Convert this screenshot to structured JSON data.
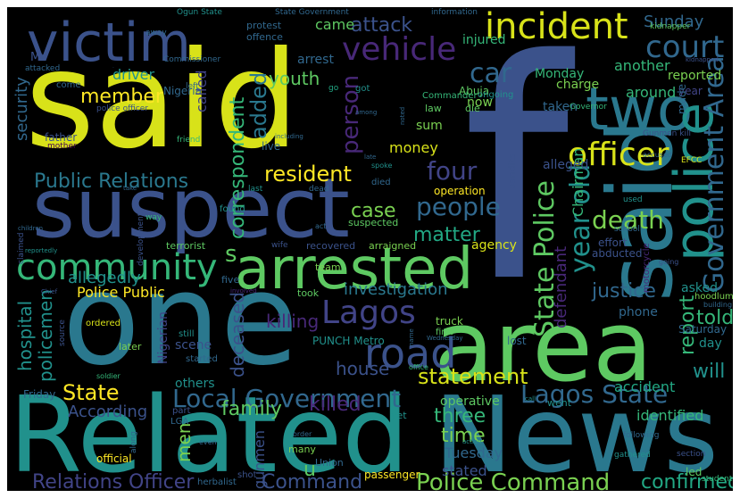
{
  "background_color": "#000000",
  "palette": [
    "#d8e219",
    "#2a788e",
    "#3b528b",
    "#21918c",
    "#5ec962",
    "#7ad151",
    "#fde725",
    "#482878",
    "#440154",
    "#31688e",
    "#35b779",
    "#414487",
    "#22a884"
  ],
  "words": [
    {
      "text": "said",
      "color": "#d8e219"
    },
    {
      "text": "f",
      "color": "#3b528b"
    },
    {
      "text": "said",
      "color": "#2a788e"
    },
    {
      "text": "suspect",
      "color": "#3b528b"
    },
    {
      "text": "one",
      "color": "#2a788e"
    },
    {
      "text": "Related",
      "color": "#21918c"
    },
    {
      "text": "News",
      "color": "#2a788e"
    },
    {
      "text": "area",
      "color": "#5ec962"
    },
    {
      "text": "victim",
      "color": "#3b528b"
    },
    {
      "text": "incident",
      "color": "#d8e219"
    },
    {
      "text": "two",
      "color": "#2a788e"
    },
    {
      "text": "arrested",
      "color": "#5ec962"
    },
    {
      "text": "community",
      "color": "#35b779"
    },
    {
      "text": "police",
      "color": "#21918c"
    },
    {
      "text": "road",
      "color": "#3b528b"
    },
    {
      "text": "Lagos",
      "color": "#414487"
    },
    {
      "text": "Lagos State",
      "color": "#31688e"
    },
    {
      "text": "Local Government",
      "color": "#31688e"
    },
    {
      "text": "State Police",
      "color": "#5ec962"
    },
    {
      "text": "Police Command",
      "color": "#7ad151"
    },
    {
      "text": "Government Area",
      "color": "#31688e"
    },
    {
      "text": "Public Relations",
      "color": "#2a788e"
    },
    {
      "text": "vehicle",
      "color": "#482878"
    },
    {
      "text": "court",
      "color": "#31688e"
    },
    {
      "text": "officer",
      "color": "#d8e219"
    },
    {
      "text": "member",
      "color": "#fde725"
    },
    {
      "text": "car",
      "color": "#31688e"
    },
    {
      "text": "resident",
      "color": "#fde725"
    },
    {
      "text": "correspondent",
      "color": "#35b779"
    },
    {
      "text": "added",
      "color": "#2a788e"
    },
    {
      "text": "person",
      "color": "#482878"
    },
    {
      "text": "youth",
      "color": "#5ec962"
    },
    {
      "text": "attack",
      "color": "#3b528b"
    },
    {
      "text": "Sunday",
      "color": "#31688e"
    },
    {
      "text": "four",
      "color": "#414487"
    },
    {
      "text": "people",
      "color": "#31688e"
    },
    {
      "text": "case",
      "color": "#7ad151"
    },
    {
      "text": "death",
      "color": "#7ad151"
    },
    {
      "text": "year old",
      "color": "#21918c"
    },
    {
      "text": "matter",
      "color": "#22a884"
    },
    {
      "text": "statement",
      "color": "#d8e219"
    },
    {
      "text": "State",
      "color": "#fde725"
    },
    {
      "text": "family",
      "color": "#5ec962"
    },
    {
      "text": "killed",
      "color": "#482878"
    },
    {
      "text": "killing",
      "color": "#482878"
    },
    {
      "text": "house",
      "color": "#3b528b"
    },
    {
      "text": "three",
      "color": "#35b779"
    },
    {
      "text": "time",
      "color": "#7ad151"
    },
    {
      "text": "report",
      "color": "#35b779"
    },
    {
      "text": "told",
      "color": "#35b779"
    },
    {
      "text": "will",
      "color": "#21918c"
    },
    {
      "text": "justice",
      "color": "#31688e"
    },
    {
      "text": "investigation",
      "color": "#2a788e"
    },
    {
      "text": "confirmed",
      "color": "#22a884"
    },
    {
      "text": "Relations Officer",
      "color": "#414487"
    },
    {
      "text": "Command",
      "color": "#3b528b"
    },
    {
      "text": "hospital",
      "color": "#21918c"
    },
    {
      "text": "policemen",
      "color": "#21918c"
    },
    {
      "text": "security",
      "color": "#31688e"
    },
    {
      "text": "deceased",
      "color": "#3b528b"
    },
    {
      "text": "According",
      "color": "#3b528b"
    },
    {
      "text": "men",
      "color": "#7ad151"
    },
    {
      "text": "accident",
      "color": "#22a884"
    },
    {
      "text": "identified",
      "color": "#35b779"
    },
    {
      "text": "Police Public",
      "color": "#fde725"
    },
    {
      "text": "Tuesday",
      "color": "#31688e"
    },
    {
      "text": "stated",
      "color": "#3b528b"
    },
    {
      "text": "allegedly",
      "color": "#21918c"
    },
    {
      "text": "defendant",
      "color": "#482878"
    },
    {
      "text": "s",
      "color": "#5ec962"
    },
    {
      "text": "u",
      "color": "#5ec962"
    },
    {
      "text": "gunmen",
      "color": "#3b528b"
    },
    {
      "text": "Chairman",
      "color": "#35b779"
    },
    {
      "text": "driver",
      "color": "#21918c"
    },
    {
      "text": "protest",
      "color": "#31688e"
    },
    {
      "text": "offence",
      "color": "#31688e"
    },
    {
      "text": "came",
      "color": "#5ec962"
    },
    {
      "text": "another",
      "color": "#35b779"
    },
    {
      "text": "injured",
      "color": "#35b779"
    },
    {
      "text": "charge",
      "color": "#7ad151"
    },
    {
      "text": "Monday",
      "color": "#35b779"
    },
    {
      "text": "around",
      "color": "#35b779"
    },
    {
      "text": "reported",
      "color": "#7ad151"
    },
    {
      "text": "taken",
      "color": "#31688e"
    },
    {
      "text": "year",
      "color": "#414487"
    },
    {
      "text": "made",
      "color": "#31688e"
    },
    {
      "text": "money",
      "color": "#d8e219"
    },
    {
      "text": "sum",
      "color": "#7ad151"
    },
    {
      "text": "Nigeria",
      "color": "#31688e"
    },
    {
      "text": "July",
      "color": "#31688e"
    },
    {
      "text": "Mr",
      "color": "#3b528b"
    },
    {
      "text": "arrest",
      "color": "#31688e"
    },
    {
      "text": "Abuja",
      "color": "#5ec962"
    },
    {
      "text": "now",
      "color": "#7ad151"
    },
    {
      "text": "called",
      "color": "#414487"
    },
    {
      "text": "live",
      "color": "#31688e"
    },
    {
      "text": "alleged",
      "color": "#3b528b"
    },
    {
      "text": "operation",
      "color": "#fde725"
    },
    {
      "text": "agency",
      "color": "#d8e219"
    },
    {
      "text": "phone",
      "color": "#31688e"
    },
    {
      "text": "abducted",
      "color": "#3b528b"
    },
    {
      "text": "effort",
      "color": "#3b528b"
    },
    {
      "text": "asked",
      "color": "#21918c"
    },
    {
      "text": "day",
      "color": "#21918c"
    },
    {
      "text": "Saturday",
      "color": "#31688e"
    },
    {
      "text": "Nigerian",
      "color": "#414487"
    },
    {
      "text": "scene",
      "color": "#3b528b"
    },
    {
      "text": "started",
      "color": "#31688e"
    },
    {
      "text": "others",
      "color": "#21918c"
    },
    {
      "text": "Friday",
      "color": "#31688e"
    },
    {
      "text": "PUNCH Metro",
      "color": "#21918c"
    },
    {
      "text": "truck",
      "color": "#7ad151"
    },
    {
      "text": "first",
      "color": "#5ec962"
    },
    {
      "text": "passenger",
      "color": "#fde725"
    },
    {
      "text": "official",
      "color": "#fde725"
    },
    {
      "text": "Union",
      "color": "#31688e"
    },
    {
      "text": "led",
      "color": "#5ec962"
    },
    {
      "text": "herbalist",
      "color": "#31688e"
    },
    {
      "text": "many",
      "color": "#7ad151"
    },
    {
      "text": "yet",
      "color": "#21918c"
    },
    {
      "text": "part",
      "color": "#3b528b"
    },
    {
      "text": "LGA",
      "color": "#31688e"
    },
    {
      "text": "went",
      "color": "#21918c"
    },
    {
      "text": "operative",
      "color": "#5ec962"
    },
    {
      "text": "lost",
      "color": "#31688e"
    },
    {
      "text": "later",
      "color": "#7ad151"
    },
    {
      "text": "ordered",
      "color": "#d8e219"
    },
    {
      "text": "still",
      "color": "#21918c"
    },
    {
      "text": "five",
      "color": "#31688e"
    },
    {
      "text": "took",
      "color": "#5ec962"
    },
    {
      "text": "team",
      "color": "#7ad151"
    },
    {
      "text": "arraigned",
      "color": "#7ad151"
    },
    {
      "text": "recovered",
      "color": "#3b528b"
    },
    {
      "text": "suspected",
      "color": "#5ec962"
    },
    {
      "text": "terrorist",
      "color": "#5ec962"
    },
    {
      "text": "found",
      "color": "#21918c"
    },
    {
      "text": "dead",
      "color": "#31688e"
    },
    {
      "text": "died",
      "color": "#31688e"
    },
    {
      "text": "last",
      "color": "#21918c"
    },
    {
      "text": "father",
      "color": "#3b528b"
    },
    {
      "text": "mother",
      "color": "#440154"
    },
    {
      "text": "friend",
      "color": "#35b779"
    },
    {
      "text": "law",
      "color": "#5ec962"
    },
    {
      "text": "die",
      "color": "#5ec962"
    },
    {
      "text": "Commander",
      "color": "#35b779"
    },
    {
      "text": "ongoing",
      "color": "#21918c"
    },
    {
      "text": "got",
      "color": "#21918c"
    },
    {
      "text": "go",
      "color": "#22a884"
    },
    {
      "text": "come",
      "color": "#31688e"
    },
    {
      "text": "attacked",
      "color": "#31688e"
    },
    {
      "text": "away",
      "color": "#31688e"
    },
    {
      "text": "Commissioner",
      "color": "#31688e"
    },
    {
      "text": "police officer",
      "color": "#3b528b"
    },
    {
      "text": "Ogun State",
      "color": "#21918c"
    },
    {
      "text": "State Government",
      "color": "#31688e"
    },
    {
      "text": "information",
      "color": "#31688e"
    },
    {
      "text": "kidnapper",
      "color": "#5ec962"
    },
    {
      "text": "kidnapped",
      "color": "#3b528b"
    },
    {
      "text": "Governor",
      "color": "#35b779"
    },
    {
      "text": "Gunmen kill",
      "color": "#3b528b"
    },
    {
      "text": "EFCC",
      "color": "#d8e219"
    },
    {
      "text": "accused",
      "color": "#31688e"
    },
    {
      "text": "used",
      "color": "#21918c"
    },
    {
      "text": "school",
      "color": "#31688e"
    },
    {
      "text": "motorcycle",
      "color": "#482878"
    },
    {
      "text": "going",
      "color": "#3b528b"
    },
    {
      "text": "hoodlum",
      "color": "#7ad151"
    },
    {
      "text": "building",
      "color": "#31688e"
    },
    {
      "text": "section",
      "color": "#3b528b"
    },
    {
      "text": "gathered",
      "color": "#21918c"
    },
    {
      "text": "student",
      "color": "#35b779"
    },
    {
      "text": "following",
      "color": "#31688e"
    },
    {
      "text": "call",
      "color": "#21918c"
    },
    {
      "text": "office",
      "color": "#35b779"
    },
    {
      "text": "name",
      "color": "#31688e"
    },
    {
      "text": "Wednesday",
      "color": "#31688e"
    },
    {
      "text": "spoke",
      "color": "#21918c"
    },
    {
      "text": "late",
      "color": "#31688e"
    },
    {
      "text": "noted",
      "color": "#31688e"
    },
    {
      "text": "among",
      "color": "#31688e"
    },
    {
      "text": "including",
      "color": "#31688e"
    },
    {
      "text": "take",
      "color": "#31688e"
    },
    {
      "text": "children",
      "color": "#31688e"
    },
    {
      "text": "reportedly",
      "color": "#21918c"
    },
    {
      "text": "claimed",
      "color": "#3b528b"
    },
    {
      "text": "Chief",
      "color": "#3b528b"
    },
    {
      "text": "source",
      "color": "#3b528b"
    },
    {
      "text": "soldier",
      "color": "#35b779"
    },
    {
      "text": "along",
      "color": "#31688e"
    },
    {
      "text": "shot",
      "color": "#3b528b"
    },
    {
      "text": "even",
      "color": "#31688e"
    },
    {
      "text": "order",
      "color": "#31688e"
    },
    {
      "text": "action",
      "color": "#21918c"
    },
    {
      "text": "development",
      "color": "#3b528b"
    },
    {
      "text": "way",
      "color": "#35b779"
    },
    {
      "text": "wife",
      "color": "#3b528b"
    },
    {
      "text": "involved",
      "color": "#482878"
    },
    {
      "text": "act",
      "color": "#31688e"
    },
    {
      "text": "left",
      "color": "#31688e"
    },
    {
      "text": "bandits",
      "color": "#3b528b"
    }
  ]
}
